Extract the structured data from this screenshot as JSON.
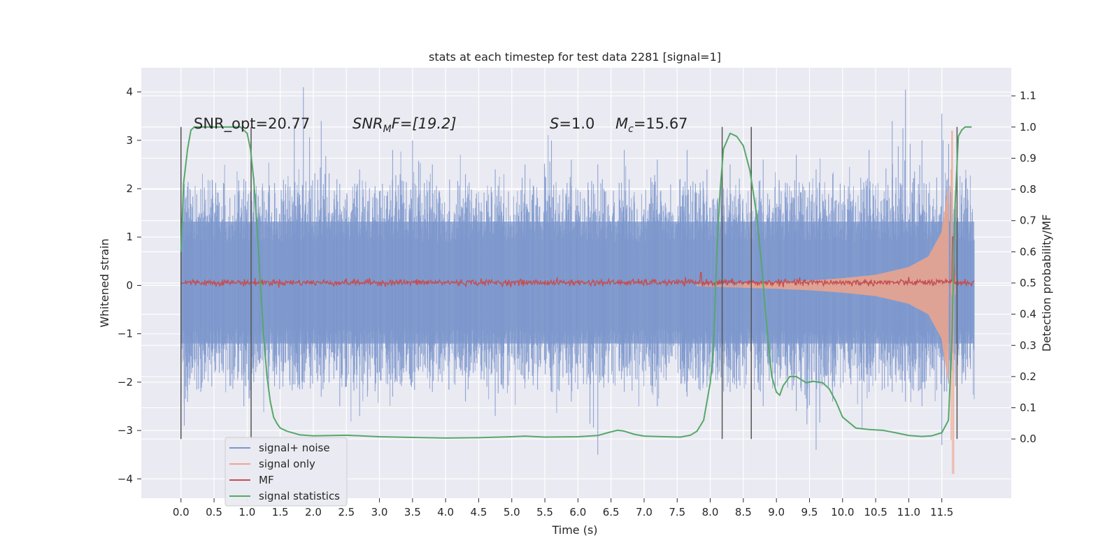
{
  "chart_data": {
    "type": "line",
    "title": "stats at each timestep for test data 2281 [signal=1]",
    "xlabel": "Time (s)",
    "ylabel_left": "Whitened strain",
    "ylabel_right": "Detection probability/MF",
    "xlim": [
      -0.6,
      12.55
    ],
    "ylim_left": [
      -4.4,
      4.5
    ],
    "ylim_right": [
      -0.19,
      1.19
    ],
    "x_ticks": [
      0.0,
      0.5,
      1.0,
      1.5,
      2.0,
      2.5,
      3.0,
      3.5,
      4.0,
      4.5,
      5.0,
      5.5,
      6.0,
      6.5,
      7.0,
      7.5,
      8.0,
      8.5,
      9.0,
      9.5,
      10.0,
      10.5,
      11.0,
      11.5
    ],
    "x_tick_labels": [
      "0.0",
      "0.5",
      "1.0",
      "1.5",
      "2.0",
      "2.5",
      "3.0",
      "3.5",
      "4.0",
      "4.5",
      "5.0",
      "5.5",
      "6.0",
      "6.5",
      "7.0",
      "7.5",
      "8.0",
      "8.5",
      "9.0",
      "9.5",
      "10.0",
      "10.5",
      "11.0",
      "11.5"
    ],
    "y_left_ticks": [
      4,
      3,
      2,
      1,
      0,
      -1,
      -2,
      -3,
      -4
    ],
    "y_left_tick_labels": [
      "4",
      "3",
      "2",
      "1",
      "0",
      "−1",
      "−2",
      "−3",
      "−4"
    ],
    "y_right_ticks": [
      1.1,
      1.0,
      0.9,
      0.8,
      0.7,
      0.6,
      0.5,
      0.4,
      0.3,
      0.2,
      0.1,
      0.0
    ],
    "y_right_tick_labels": [
      "1.1",
      "1.0",
      "0.9",
      "0.8",
      "0.7",
      "0.6",
      "0.5",
      "0.4",
      "0.3",
      "0.2",
      "0.1",
      "0.0"
    ],
    "grid": true,
    "legend_position": "lower-left",
    "annotations": {
      "snr_opt": "SNR_opt=20.77",
      "snr_mf_main": "SNR",
      "snr_mf_sub": "M",
      "snr_mf_rest": "F=[19.2]",
      "s_main": "S",
      "s_rest": "=1.0",
      "mc_main": "M",
      "mc_sub": "c",
      "mc_rest": "=15.67"
    },
    "series": [
      {
        "name": "signal+ noise",
        "axis": "left",
        "color": "#7c97cc",
        "core_band": [
          -1.2,
          1.32
        ],
        "noise_spikes": [
          [
            0.05,
            2.1,
            -2.9
          ],
          [
            0.3,
            2.0,
            -2.2
          ],
          [
            0.95,
            2.2,
            -2.5
          ],
          [
            1.1,
            2.0,
            -2.0
          ],
          [
            1.85,
            4.1,
            -2.0
          ],
          [
            2.12,
            3.4,
            -2.3
          ],
          [
            2.4,
            2.1,
            -2.5
          ],
          [
            2.7,
            2.4,
            -2.7
          ],
          [
            3.2,
            2.8,
            -2.3
          ],
          [
            3.5,
            3.0,
            -2.0
          ],
          [
            3.8,
            2.5,
            -2.2
          ],
          [
            4.3,
            2.3,
            -2.4
          ],
          [
            4.75,
            2.4,
            -2.7
          ],
          [
            5.2,
            2.5,
            -2.0
          ],
          [
            5.6,
            3.0,
            -2.2
          ],
          [
            5.9,
            2.6,
            -2.4
          ],
          [
            6.3,
            2.5,
            -3.5
          ],
          [
            6.7,
            2.8,
            -2.2
          ],
          [
            7.2,
            2.6,
            -2.5
          ],
          [
            7.65,
            2.8,
            -2.3
          ],
          [
            7.95,
            2.4,
            -2.1
          ],
          [
            8.3,
            2.5,
            -2.2
          ],
          [
            8.8,
            2.6,
            -2.5
          ],
          [
            9.3,
            2.7,
            -2.6
          ],
          [
            9.6,
            2.4,
            -3.4
          ],
          [
            9.85,
            2.3,
            -2.4
          ],
          [
            10.4,
            2.8,
            -2.2
          ],
          [
            10.75,
            3.4,
            -2.2
          ],
          [
            10.95,
            4.05,
            -2.4
          ],
          [
            11.2,
            3.0,
            -2.5
          ],
          [
            11.5,
            3.55,
            -3.3
          ]
        ],
        "x_range": [
          0.0,
          11.99
        ]
      },
      {
        "name": "signal only",
        "axis": "left",
        "color": "#eea58a",
        "chirp_envelope": [
          [
            7.8,
            0.02
          ],
          [
            8.5,
            0.05
          ],
          [
            9.0,
            0.07
          ],
          [
            9.5,
            0.1
          ],
          [
            10.0,
            0.15
          ],
          [
            10.5,
            0.22
          ],
          [
            11.0,
            0.38
          ],
          [
            11.3,
            0.6
          ],
          [
            11.5,
            1.1
          ],
          [
            11.6,
            2.0
          ],
          [
            11.65,
            3.2
          ],
          [
            11.68,
            -3.9
          ],
          [
            11.7,
            0.0
          ]
        ]
      },
      {
        "name": "MF",
        "axis": "left",
        "color": "#c44e52",
        "baseline": 0.06,
        "noise_amplitude": 0.08,
        "spikes": [
          [
            7.86,
            0.27
          ],
          [
            11.67,
            1.0
          ]
        ]
      },
      {
        "name": "signal statistics",
        "axis": "right",
        "color": "#55a868",
        "x": [
          0.0,
          0.04,
          0.1,
          0.15,
          0.2,
          0.3,
          0.5,
          0.9,
          1.0,
          1.05,
          1.1,
          1.15,
          1.2,
          1.25,
          1.3,
          1.35,
          1.4,
          1.45,
          1.5,
          1.6,
          1.8,
          2.0,
          2.5,
          3.0,
          3.5,
          4.0,
          4.5,
          5.0,
          5.2,
          5.5,
          6.0,
          6.3,
          6.45,
          6.6,
          6.7,
          6.85,
          7.0,
          7.3,
          7.55,
          7.7,
          7.8,
          7.9,
          8.0,
          8.05,
          8.1,
          8.15,
          8.2,
          8.3,
          8.4,
          8.5,
          8.6,
          8.7,
          8.78,
          8.83,
          8.88,
          8.93,
          9.0,
          9.05,
          9.1,
          9.2,
          9.3,
          9.45,
          9.55,
          9.7,
          9.8,
          9.9,
          10.0,
          10.2,
          10.4,
          10.6,
          10.8,
          11.0,
          11.2,
          11.35,
          11.5,
          11.6,
          11.65,
          11.7,
          11.75,
          11.8,
          11.85,
          11.9,
          11.95
        ],
        "y": [
          0.6,
          0.82,
          0.93,
          0.99,
          1.0,
          1.0,
          1.0,
          1.0,
          0.98,
          0.93,
          0.83,
          0.68,
          0.5,
          0.33,
          0.2,
          0.12,
          0.07,
          0.05,
          0.035,
          0.025,
          0.013,
          0.01,
          0.012,
          0.007,
          0.005,
          0.003,
          0.004,
          0.007,
          0.009,
          0.006,
          0.007,
          0.011,
          0.02,
          0.028,
          0.025,
          0.015,
          0.009,
          0.007,
          0.006,
          0.012,
          0.025,
          0.06,
          0.18,
          0.3,
          0.6,
          0.8,
          0.93,
          0.98,
          0.97,
          0.94,
          0.86,
          0.72,
          0.55,
          0.42,
          0.3,
          0.2,
          0.15,
          0.14,
          0.17,
          0.2,
          0.2,
          0.18,
          0.185,
          0.18,
          0.16,
          0.12,
          0.07,
          0.035,
          0.03,
          0.028,
          0.02,
          0.011,
          0.008,
          0.01,
          0.02,
          0.06,
          0.3,
          0.75,
          0.97,
          0.99,
          1.0,
          1.0,
          1.0
        ]
      }
    ],
    "vertical_markers": [
      0.0,
      1.06,
      8.18,
      8.62,
      11.73
    ],
    "vertical_marker_color": "#555555"
  }
}
